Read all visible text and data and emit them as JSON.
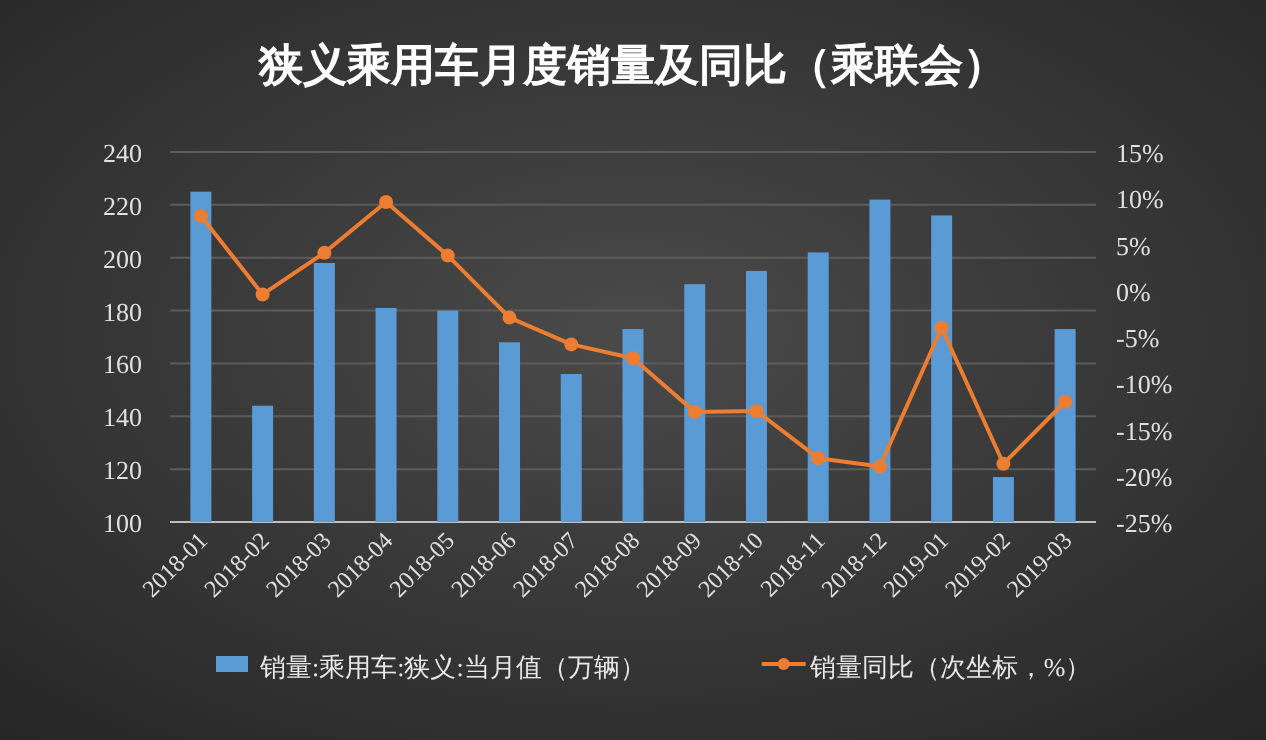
{
  "chart_data": {
    "type": "bar",
    "title": "狭义乘用车月度销量及同比（乘联会）",
    "categories": [
      "2018-01",
      "2018-02",
      "2018-03",
      "2018-04",
      "2018-05",
      "2018-06",
      "2018-07",
      "2018-08",
      "2018-09",
      "2018-10",
      "2018-11",
      "2018-12",
      "2019-01",
      "2019-02",
      "2019-03"
    ],
    "series": [
      {
        "name": "销量:乘用车:狭义:当月值（万辆）",
        "color": "#5b9bd5",
        "values": [
          225,
          144,
          198,
          181,
          180,
          168,
          156,
          173,
          190,
          195,
          202,
          222,
          216,
          117,
          173
        ]
      },
      {
        "name": "销量同比（次坐标，%）",
        "type": "line",
        "axis": "y2",
        "color": "#ed7d31",
        "marker": "circle",
        "values": [
          8.1,
          -0.4,
          4.1,
          9.6,
          3.8,
          -2.9,
          -5.8,
          -7.3,
          -13.1,
          -13.0,
          -18.1,
          -19.0,
          -4.0,
          -18.7,
          -12.0
        ]
      }
    ],
    "ylim": [
      100,
      240
    ],
    "yticks": [
      100,
      120,
      140,
      160,
      180,
      200,
      220,
      240
    ],
    "y2lim": [
      -25,
      15
    ],
    "y2ticks": [
      {
        "value": -25,
        "label": "-25%"
      },
      {
        "value": -20,
        "label": "-20%"
      },
      {
        "value": -15,
        "label": "-15%"
      },
      {
        "value": -10,
        "label": "-10%"
      },
      {
        "value": -5,
        "label": "-5%"
      },
      {
        "value": 0,
        "label": "0%"
      },
      {
        "value": 5,
        "label": "5%"
      },
      {
        "value": 10,
        "label": "10%"
      },
      {
        "value": 15,
        "label": "15%"
      }
    ],
    "grid": "y",
    "legend": "bottom"
  }
}
